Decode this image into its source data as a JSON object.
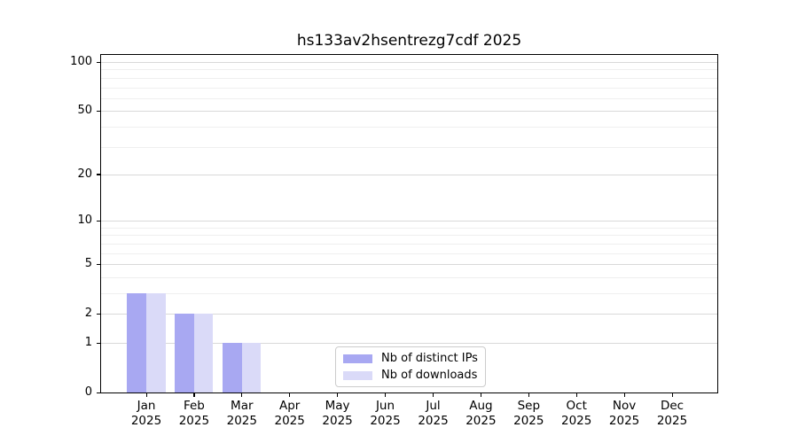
{
  "chart_data": {
    "type": "bar",
    "title": "hs133av2hsentrezg7cdf 2025",
    "categories": [
      "Jan",
      "Feb",
      "Mar",
      "Apr",
      "May",
      "Jun",
      "Jul",
      "Aug",
      "Sep",
      "Oct",
      "Nov",
      "Dec"
    ],
    "category_year": "2025",
    "series": [
      {
        "name": "Nb of distinct IPs",
        "color": "#a8a8f2",
        "values": [
          3,
          2,
          1,
          0,
          0,
          0,
          0,
          0,
          0,
          0,
          0,
          0
        ]
      },
      {
        "name": "Nb of downloads",
        "color": "#dadaf8",
        "values": [
          3,
          2,
          1,
          0,
          0,
          0,
          0,
          0,
          0,
          0,
          0,
          0
        ]
      }
    ],
    "y_axis": {
      "scale": "log1p",
      "ylim": [
        0,
        100
      ],
      "ticks": [
        0,
        1,
        2,
        5,
        10,
        20,
        50,
        100
      ],
      "minor_gridlines": [
        3,
        4,
        6,
        7,
        8,
        9,
        30,
        40,
        60,
        70,
        80,
        90
      ]
    },
    "xlabel": "",
    "ylabel": "",
    "grid": true,
    "legend_position": "lower-center-inside"
  }
}
